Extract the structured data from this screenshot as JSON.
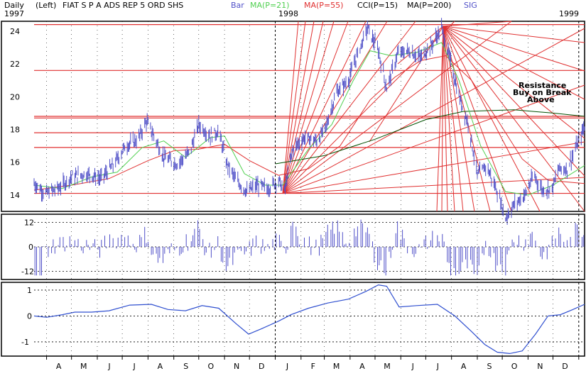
{
  "header": {
    "period": "Daily",
    "axis_side": "(Left)",
    "title": "FIAT S P A ADS REP 5 ORD SHS",
    "year_left": "1997",
    "year_mid": "1998",
    "year_right": "1999",
    "legend": [
      {
        "label": "Bar",
        "color": "#5050c8"
      },
      {
        "label": "MA(P=21)",
        "color": "#50d050"
      },
      {
        "label": "MA(P=55)",
        "color": "#e03030"
      },
      {
        "label": "CCI(P=15)",
        "color": "#000000"
      },
      {
        "label": "MA(P=200)",
        "color": "#000000"
      },
      {
        "label": "SIG",
        "color": "#5050c8"
      }
    ]
  },
  "annotation": {
    "line1": "Resistance",
    "line2": "Buy on Break",
    "line3": "Above"
  },
  "colors": {
    "bars": "#5050c8",
    "ma21": "#50d050",
    "ma55": "#e03030",
    "ma200": "#005000",
    "trend": "#e03030",
    "cci_bars": "#5050c8",
    "sig": "#3050d0",
    "grid": "#000000"
  },
  "chart_data": [
    {
      "type": "line",
      "panel": "price",
      "ylim": [
        13,
        24.6
      ],
      "yticks": [
        "24",
        "22",
        "20",
        "18",
        "16",
        "14"
      ],
      "ytick_values": [
        24,
        22,
        20,
        18,
        16,
        14
      ],
      "x_months": [
        "A",
        "M",
        "J",
        "J",
        "A",
        "S",
        "O",
        "N",
        "D",
        "J",
        "F",
        "M",
        "A",
        "M",
        "J",
        "J",
        "A",
        "S",
        "O",
        "N",
        "D",
        "J"
      ],
      "x_start": "1997-03-17",
      "x_end": "1999-01-08",
      "horizontal_levels": [
        24.4,
        21.6,
        18.8,
        18.7,
        17.8,
        16.9,
        14.1
      ],
      "price_path": [
        {
          "x": "1997-03-17",
          "y": 14.7
        },
        {
          "x": "1997-03-31",
          "y": 14.1
        },
        {
          "x": "1997-04-15",
          "y": 14.4
        },
        {
          "x": "1997-05-01",
          "y": 15.1
        },
        {
          "x": "1997-05-20",
          "y": 15.3
        },
        {
          "x": "1997-06-05",
          "y": 15.0
        },
        {
          "x": "1997-06-20",
          "y": 15.8
        },
        {
          "x": "1997-07-05",
          "y": 17.0
        },
        {
          "x": "1997-07-20",
          "y": 17.4
        },
        {
          "x": "1997-07-30",
          "y": 18.5
        },
        {
          "x": "1997-08-08",
          "y": 17.6
        },
        {
          "x": "1997-08-20",
          "y": 16.3
        },
        {
          "x": "1997-09-05",
          "y": 15.9
        },
        {
          "x": "1997-09-20",
          "y": 16.6
        },
        {
          "x": "1997-10-01",
          "y": 18.3
        },
        {
          "x": "1997-10-15",
          "y": 17.6
        },
        {
          "x": "1997-10-25",
          "y": 17.9
        },
        {
          "x": "1997-11-03",
          "y": 16.0
        },
        {
          "x": "1997-11-15",
          "y": 14.9
        },
        {
          "x": "1997-11-28",
          "y": 14.2
        },
        {
          "x": "1997-12-10",
          "y": 14.6
        },
        {
          "x": "1997-12-23",
          "y": 14.4
        },
        {
          "x": "1998-01-05",
          "y": 14.9
        },
        {
          "x": "1998-01-12",
          "y": 14.2
        },
        {
          "x": "1998-01-22",
          "y": 16.8
        },
        {
          "x": "1998-02-05",
          "y": 17.5
        },
        {
          "x": "1998-02-20",
          "y": 17.3
        },
        {
          "x": "1998-03-02",
          "y": 18.0
        },
        {
          "x": "1998-03-15",
          "y": 20.2
        },
        {
          "x": "1998-03-30",
          "y": 21.0
        },
        {
          "x": "1998-04-10",
          "y": 22.6
        },
        {
          "x": "1998-04-22",
          "y": 24.2
        },
        {
          "x": "1998-05-05",
          "y": 22.8
        },
        {
          "x": "1998-05-15",
          "y": 20.5
        },
        {
          "x": "1998-05-28",
          "y": 22.6
        },
        {
          "x": "1998-06-10",
          "y": 22.8
        },
        {
          "x": "1998-06-25",
          "y": 22.4
        },
        {
          "x": "1998-07-10",
          "y": 23.3
        },
        {
          "x": "1998-07-20",
          "y": 24.2
        },
        {
          "x": "1998-07-30",
          "y": 22.3
        },
        {
          "x": "1998-08-10",
          "y": 20.0
        },
        {
          "x": "1998-08-22",
          "y": 18.2
        },
        {
          "x": "1998-09-01",
          "y": 15.2
        },
        {
          "x": "1998-09-12",
          "y": 15.8
        },
        {
          "x": "1998-09-25",
          "y": 14.2
        },
        {
          "x": "1998-10-05",
          "y": 12.6
        },
        {
          "x": "1998-10-15",
          "y": 13.4
        },
        {
          "x": "1998-10-28",
          "y": 14.0
        },
        {
          "x": "1998-11-08",
          "y": 15.2
        },
        {
          "x": "1998-11-18",
          "y": 14.3
        },
        {
          "x": "1998-11-30",
          "y": 14.4
        },
        {
          "x": "1998-12-08",
          "y": 15.6
        },
        {
          "x": "1998-12-18",
          "y": 15.6
        },
        {
          "x": "1998-12-28",
          "y": 16.8
        },
        {
          "x": "1999-01-08",
          "y": 18.2
        }
      ],
      "ma21": [
        {
          "x": "1997-03-17",
          "y": 14.6
        },
        {
          "x": "1997-04-20",
          "y": 14.4
        },
        {
          "x": "1997-05-25",
          "y": 15.1
        },
        {
          "x": "1997-06-25",
          "y": 15.4
        },
        {
          "x": "1997-07-25",
          "y": 16.9
        },
        {
          "x": "1997-08-20",
          "y": 17.3
        },
        {
          "x": "1997-09-15",
          "y": 16.3
        },
        {
          "x": "1997-10-15",
          "y": 17.5
        },
        {
          "x": "1997-11-01",
          "y": 17.6
        },
        {
          "x": "1997-11-25",
          "y": 15.3
        },
        {
          "x": "1997-12-20",
          "y": 14.6
        },
        {
          "x": "1998-01-10",
          "y": 14.6
        },
        {
          "x": "1998-02-10",
          "y": 16.8
        },
        {
          "x": "1998-03-10",
          "y": 18.3
        },
        {
          "x": "1998-04-05",
          "y": 21.0
        },
        {
          "x": "1998-04-25",
          "y": 22.8
        },
        {
          "x": "1998-05-20",
          "y": 22.5
        },
        {
          "x": "1998-06-20",
          "y": 22.7
        },
        {
          "x": "1998-07-20",
          "y": 23.3
        },
        {
          "x": "1998-08-10",
          "y": 21.0
        },
        {
          "x": "1998-09-05",
          "y": 17.0
        },
        {
          "x": "1998-10-05",
          "y": 14.2
        },
        {
          "x": "1998-11-01",
          "y": 14.0
        },
        {
          "x": "1998-12-01",
          "y": 14.6
        },
        {
          "x": "1999-01-08",
          "y": 15.8
        }
      ],
      "ma55": [
        {
          "x": "1997-03-17",
          "y": 14.3
        },
        {
          "x": "1997-05-01",
          "y": 14.6
        },
        {
          "x": "1997-06-15",
          "y": 15.0
        },
        {
          "x": "1997-08-01",
          "y": 16.1
        },
        {
          "x": "1997-09-01",
          "y": 16.7
        },
        {
          "x": "1997-10-01",
          "y": 16.8
        },
        {
          "x": "1997-11-01",
          "y": 17.1
        },
        {
          "x": "1997-12-01",
          "y": 16.1
        },
        {
          "x": "1998-01-05",
          "y": 15.2
        },
        {
          "x": "1998-02-10",
          "y": 15.6
        },
        {
          "x": "1998-03-20",
          "y": 17.0
        },
        {
          "x": "1998-04-25",
          "y": 19.8
        },
        {
          "x": "1998-05-25",
          "y": 21.2
        },
        {
          "x": "1998-06-25",
          "y": 22.2
        },
        {
          "x": "1998-07-25",
          "y": 22.5
        },
        {
          "x": "1998-08-25",
          "y": 21.0
        },
        {
          "x": "1998-09-25",
          "y": 18.6
        },
        {
          "x": "1998-10-25",
          "y": 16.2
        },
        {
          "x": "1998-11-25",
          "y": 14.9
        },
        {
          "x": "1999-01-08",
          "y": 14.7
        }
      ],
      "ma200": [
        {
          "x": "1998-01-01",
          "y": 15.9
        },
        {
          "x": "1998-03-01",
          "y": 16.4
        },
        {
          "x": "1998-05-01",
          "y": 17.4
        },
        {
          "x": "1998-07-01",
          "y": 18.6
        },
        {
          "x": "1998-08-15",
          "y": 19.1
        },
        {
          "x": "1998-10-15",
          "y": 19.2
        },
        {
          "x": "1998-12-01",
          "y": 19.0
        },
        {
          "x": "1999-01-08",
          "y": 18.8
        }
      ],
      "fan_origins": [
        {
          "x": "1998-01-10",
          "y": 14.1
        },
        {
          "x": "1998-07-22",
          "y": 24.3
        }
      ]
    },
    {
      "type": "bar",
      "panel": "CCI",
      "name": "CCI(P=15)",
      "ylim": [
        -16,
        16
      ],
      "yticks": [
        "12",
        "0",
        "-12"
      ],
      "ytick_values": [
        12,
        0,
        -12
      ]
    },
    {
      "type": "line",
      "panel": "SIG",
      "name": "SIG",
      "ylim": [
        -1.55,
        1.3
      ],
      "yticks": [
        "1",
        "0",
        "-1"
      ],
      "ytick_values": [
        1,
        0,
        -1
      ],
      "points": [
        {
          "x": "1997-03-17",
          "y": 0.0
        },
        {
          "x": "1997-04-01",
          "y": -0.05
        },
        {
          "x": "1997-04-20",
          "y": 0.05
        },
        {
          "x": "1997-05-05",
          "y": 0.15
        },
        {
          "x": "1997-05-25",
          "y": 0.15
        },
        {
          "x": "1997-06-15",
          "y": 0.2
        },
        {
          "x": "1997-07-10",
          "y": 0.42
        },
        {
          "x": "1997-08-05",
          "y": 0.45
        },
        {
          "x": "1997-08-25",
          "y": 0.25
        },
        {
          "x": "1997-09-15",
          "y": 0.2
        },
        {
          "x": "1997-10-05",
          "y": 0.4
        },
        {
          "x": "1997-10-25",
          "y": 0.3
        },
        {
          "x": "1997-11-15",
          "y": -0.3
        },
        {
          "x": "1997-11-30",
          "y": -0.7
        },
        {
          "x": "1997-12-15",
          "y": -0.5
        },
        {
          "x": "1998-01-05",
          "y": -0.2
        },
        {
          "x": "1998-01-20",
          "y": 0.05
        },
        {
          "x": "1998-02-10",
          "y": 0.3
        },
        {
          "x": "1998-03-05",
          "y": 0.5
        },
        {
          "x": "1998-03-30",
          "y": 0.65
        },
        {
          "x": "1998-04-20",
          "y": 0.95
        },
        {
          "x": "1998-05-05",
          "y": 1.2
        },
        {
          "x": "1998-05-15",
          "y": 1.15
        },
        {
          "x": "1998-05-30",
          "y": 0.35
        },
        {
          "x": "1998-06-20",
          "y": 0.4
        },
        {
          "x": "1998-07-15",
          "y": 0.45
        },
        {
          "x": "1998-08-05",
          "y": 0.0
        },
        {
          "x": "1998-08-25",
          "y": -0.6
        },
        {
          "x": "1998-09-10",
          "y": -1.1
        },
        {
          "x": "1998-09-25",
          "y": -1.4
        },
        {
          "x": "1998-10-10",
          "y": -1.45
        },
        {
          "x": "1998-10-25",
          "y": -1.35
        },
        {
          "x": "1998-11-10",
          "y": -0.7
        },
        {
          "x": "1998-11-25",
          "y": 0.0
        },
        {
          "x": "1998-12-10",
          "y": 0.05
        },
        {
          "x": "1998-12-25",
          "y": 0.25
        },
        {
          "x": "1999-01-08",
          "y": 0.45
        }
      ]
    }
  ]
}
